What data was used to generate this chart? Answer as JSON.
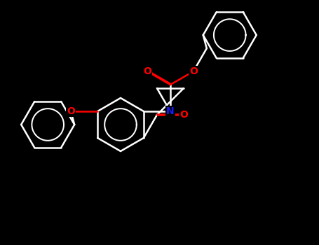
{
  "bg_color": "#000000",
  "bond_color": "#ffffff",
  "o_color": "#ff0000",
  "n_color": "#1a1aff",
  "bond_width": 1.8,
  "dbo": 0.012,
  "fig_width": 4.55,
  "fig_height": 3.5,
  "dpi": 100,
  "xlim": [
    0,
    4.55
  ],
  "ylim": [
    0,
    3.5
  ]
}
